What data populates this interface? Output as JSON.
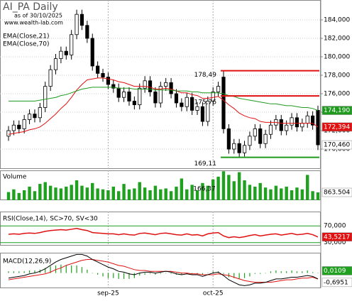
{
  "chart_data": [
    {
      "type": "candlestick",
      "title": "AI_PA Daily",
      "subtitle": "as of 30/10/2025",
      "source": "www.wealth-lab.com",
      "ylim": [
        167.85,
        186.15
      ],
      "yticks": [
        {
          "value": 170,
          "label": "170,000"
        },
        {
          "value": 172,
          "label": "172,000"
        },
        {
          "value": 174,
          "label": "174,000"
        },
        {
          "value": 176,
          "label": "176,000"
        },
        {
          "value": 178,
          "label": "178,000"
        },
        {
          "value": 180,
          "label": "180,000"
        },
        {
          "value": 182,
          "label": "182,000"
        },
        {
          "value": 184,
          "label": "184,000"
        }
      ],
      "grid": true,
      "ohlc": {
        "open": [
          171.4,
          172.0,
          172.6,
          172.2,
          173.2,
          173.8,
          173.4,
          174.5,
          176.8,
          178.6,
          179.8,
          180.6,
          180.2,
          182.4,
          184.6,
          183.4,
          182.0,
          179.0,
          178.2,
          177.8,
          177.0,
          176.6,
          175.6,
          176.2,
          175.2,
          174.8,
          176.6,
          177.4,
          176.2,
          175.0,
          176.8,
          177.2,
          176.0,
          175.0,
          174.6,
          175.6,
          174.2,
          174.6,
          173.0,
          175.2,
          176.2,
          177.8,
          172.2,
          170.0,
          170.6,
          169.6,
          170.4,
          171.4,
          172.2,
          170.6,
          171.6,
          172.6,
          173.2,
          172.0,
          172.6,
          173.4,
          172.4,
          172.8,
          173.6,
          174.2
        ],
        "high": [
          172.5,
          173.1,
          173.1,
          173.7,
          174.3,
          174.3,
          175.0,
          177.3,
          179.1,
          180.3,
          181.1,
          181.1,
          182.9,
          185.1,
          185.1,
          183.9,
          182.5,
          179.5,
          178.7,
          178.3,
          177.5,
          177.1,
          176.7,
          176.7,
          175.7,
          177.1,
          177.9,
          177.9,
          176.7,
          177.3,
          177.7,
          177.7,
          176.5,
          175.5,
          176.1,
          176.1,
          175.1,
          175.1,
          175.7,
          176.7,
          177.3,
          178.49,
          172.7,
          171.1,
          171.1,
          170.9,
          171.9,
          172.7,
          172.7,
          172.1,
          173.1,
          173.7,
          173.7,
          173.1,
          173.9,
          173.9,
          173.3,
          174.1,
          174.1,
          174.7
        ],
        "low": [
          170.9,
          171.5,
          171.7,
          171.7,
          172.7,
          172.9,
          172.9,
          174.0,
          176.3,
          178.1,
          179.3,
          179.7,
          179.7,
          181.9,
          182.9,
          181.5,
          178.5,
          177.7,
          177.3,
          176.5,
          176.1,
          175.1,
          175.1,
          174.7,
          174.3,
          174.3,
          176.1,
          175.7,
          174.5,
          174.5,
          176.3,
          175.5,
          174.5,
          174.1,
          174.1,
          173.7,
          173.7,
          172.5,
          172.5,
          174.7,
          175.7,
          171.7,
          169.5,
          169.5,
          169.11,
          169.2,
          169.9,
          170.9,
          170.1,
          170.1,
          171.1,
          172.1,
          171.5,
          171.5,
          172.1,
          171.9,
          171.9,
          172.3,
          172.1,
          169.9
        ],
        "close": [
          172.0,
          172.6,
          172.2,
          173.2,
          173.8,
          173.4,
          174.5,
          176.8,
          178.6,
          179.8,
          180.6,
          180.2,
          182.4,
          184.6,
          183.4,
          182.0,
          179.0,
          178.2,
          177.8,
          177.0,
          176.6,
          175.6,
          176.2,
          175.2,
          174.8,
          176.6,
          177.4,
          176.2,
          175.0,
          176.8,
          177.2,
          176.0,
          175.0,
          174.6,
          175.6,
          174.2,
          174.6,
          173.0,
          175.2,
          176.2,
          176.8,
          172.2,
          170.0,
          170.6,
          169.6,
          170.4,
          171.4,
          172.2,
          170.6,
          171.6,
          172.6,
          173.2,
          172.0,
          172.6,
          173.4,
          172.4,
          172.8,
          173.6,
          172.6,
          170.46
        ],
        "last_label": "170,460"
      },
      "series": [
        {
          "name": "EMA(Close,21)",
          "color": "#e01010",
          "last_label": "172,394",
          "values": [
            171.6,
            171.7,
            171.8,
            171.9,
            172.1,
            172.2,
            172.4,
            172.8,
            173.3,
            173.8,
            174.4,
            174.9,
            175.6,
            176.4,
            177.0,
            177.5,
            177.6,
            177.7,
            177.7,
            177.6,
            177.5,
            177.3,
            177.2,
            177.0,
            176.8,
            176.8,
            176.8,
            176.7,
            176.5,
            176.5,
            176.6,
            176.5,
            176.3,
            176.1,
            176.1,
            175.9,
            175.8,
            175.5,
            175.5,
            175.6,
            175.7,
            175.3,
            174.8,
            174.4,
            173.9,
            173.6,
            173.4,
            173.3,
            173.0,
            172.9,
            172.9,
            172.9,
            172.8,
            172.8,
            172.8,
            172.8,
            172.8,
            172.8,
            172.8,
            172.394
          ]
        },
        {
          "name": "EMA(Close,70)",
          "color": "#1f9a1f",
          "last_label": "174,190",
          "values": [
            175.2,
            175.2,
            175.2,
            175.2,
            175.2,
            175.2,
            175.3,
            175.4,
            175.5,
            175.6,
            175.8,
            175.9,
            176.1,
            176.3,
            176.5,
            176.6,
            176.7,
            176.7,
            176.7,
            176.7,
            176.7,
            176.6,
            176.6,
            176.6,
            176.5,
            176.5,
            176.5,
            176.5,
            176.4,
            176.4,
            176.4,
            176.4,
            176.3,
            176.3,
            176.3,
            176.2,
            176.2,
            176.1,
            176.1,
            176.1,
            176.1,
            176.0,
            175.8,
            175.7,
            175.5,
            175.4,
            175.3,
            175.2,
            175.1,
            175.0,
            174.9,
            174.9,
            174.8,
            174.7,
            174.7,
            174.6,
            174.5,
            174.5,
            174.4,
            174.19
          ]
        }
      ],
      "levels": [
        {
          "value": 178.49,
          "label": "178,49",
          "color": "#e01010"
        },
        {
          "value": 175.76,
          "label": "175,76",
          "color": "#e01010"
        },
        {
          "value": 169.11,
          "label": "169,11",
          "color": "#1f9a1f"
        }
      ]
    },
    {
      "type": "bar",
      "title": "Volume",
      "color": "#1fa01f",
      "ylim": [
        0,
        3300000
      ],
      "annotation": "166,37",
      "last_label": "863.504",
      "values": [
        900000,
        1200000,
        800000,
        1100000,
        1500000,
        1000000,
        1800000,
        2000000,
        1600000,
        1400000,
        1300000,
        1500000,
        1700000,
        2200000,
        1600000,
        1400000,
        1900000,
        1300000,
        1200000,
        1100000,
        1500000,
        1000000,
        1800000,
        1200000,
        1300000,
        2000000,
        1400000,
        1100000,
        1600000,
        1200000,
        1300000,
        1000000,
        1500000,
        2400000,
        1200000,
        1700000,
        1100000,
        1900000,
        1600000,
        2300000,
        2600000,
        3200000,
        2800000,
        2100000,
        3100000,
        2200000,
        1700000,
        1500000,
        1900000,
        1400000,
        1200000,
        1600000,
        1300000,
        1500000,
        1100000,
        1400000,
        1200000,
        2800000,
        1000000,
        863504
      ]
    },
    {
      "type": "line",
      "title": "RSI(Close,14), SC>70, SV<30",
      "ylim": [
        22.7,
        104.5
      ],
      "yticks": [
        {
          "value": 70,
          "label": "70,000"
        },
        {
          "value": 30,
          "label": "30,000"
        }
      ],
      "level_color": "#1f9a1f",
      "series": [
        {
          "color": "#e01010",
          "last_label": "43,5217",
          "values": [
            50,
            51,
            50,
            52,
            53,
            52,
            54,
            57,
            59,
            60,
            61,
            60,
            62,
            64,
            61,
            59,
            54,
            53,
            52,
            51,
            51,
            49,
            51,
            49,
            48,
            52,
            53,
            51,
            49,
            52,
            53,
            51,
            49,
            48,
            51,
            48,
            49,
            46,
            51,
            53,
            54,
            46,
            42,
            44,
            42,
            44,
            47,
            49,
            46,
            48,
            50,
            51,
            48,
            50,
            52,
            49,
            50,
            52,
            49,
            43.5217
          ]
        }
      ]
    },
    {
      "type": "macd",
      "title": "MACD(12,26,9)",
      "ylim": [
        -1.8,
        2.4
      ],
      "macd": {
        "color": "#000000",
        "last_label": "-0,6951",
        "values": [
          -0.6,
          -0.5,
          -0.4,
          -0.3,
          -0.1,
          0.0,
          0.2,
          0.5,
          0.9,
          1.3,
          1.6,
          1.8,
          2.0,
          2.2,
          2.2,
          2.0,
          1.6,
          1.3,
          1.0,
          0.7,
          0.5,
          0.2,
          0.1,
          -0.1,
          -0.2,
          0.0,
          0.1,
          0.1,
          0.0,
          0.1,
          0.2,
          0.1,
          -0.1,
          -0.2,
          -0.1,
          -0.2,
          -0.2,
          -0.4,
          -0.2,
          0.0,
          0.1,
          -0.3,
          -0.8,
          -1.1,
          -1.4,
          -1.5,
          -1.4,
          -1.2,
          -1.2,
          -1.1,
          -0.9,
          -0.7,
          -0.7,
          -0.6,
          -0.5,
          -0.5,
          -0.4,
          -0.3,
          -0.4,
          -0.6951
        ]
      },
      "signal": {
        "color": "#e01010",
        "values": [
          -0.8,
          -0.7,
          -0.6,
          -0.5,
          -0.4,
          -0.3,
          -0.2,
          -0.1,
          0.1,
          0.4,
          0.6,
          0.9,
          1.1,
          1.3,
          1.5,
          1.6,
          1.6,
          1.5,
          1.4,
          1.3,
          1.1,
          0.9,
          0.8,
          0.6,
          0.4,
          0.3,
          0.3,
          0.2,
          0.2,
          0.2,
          0.2,
          0.2,
          0.1,
          0.0,
          0.0,
          -0.1,
          -0.1,
          -0.2,
          -0.2,
          -0.2,
          -0.1,
          -0.2,
          -0.3,
          -0.5,
          -0.7,
          -0.9,
          -1.0,
          -1.1,
          -1.1,
          -1.1,
          -1.1,
          -1.0,
          -0.9,
          -0.8,
          -0.8,
          -0.7,
          -0.6,
          -0.6,
          -0.5,
          -0.706
        ]
      },
      "histogram": {
        "color": "#1fa01f",
        "last_label": "0,0109",
        "values": [
          0.2,
          0.2,
          0.2,
          0.2,
          0.3,
          0.3,
          0.4,
          0.6,
          0.8,
          0.9,
          1.0,
          0.9,
          0.9,
          0.9,
          0.7,
          0.4,
          0.0,
          -0.2,
          -0.4,
          -0.6,
          -0.6,
          -0.7,
          -0.7,
          -0.7,
          -0.6,
          -0.3,
          -0.2,
          -0.1,
          -0.2,
          -0.1,
          0.0,
          -0.1,
          -0.2,
          -0.2,
          -0.1,
          -0.1,
          -0.1,
          -0.2,
          0.0,
          0.2,
          0.2,
          -0.1,
          -0.5,
          -0.6,
          -0.7,
          -0.6,
          -0.4,
          -0.1,
          -0.1,
          0.0,
          0.2,
          0.3,
          0.2,
          0.2,
          0.3,
          0.2,
          0.2,
          0.3,
          0.1,
          0.0109
        ]
      },
      "x_labels": [
        {
          "index": 19,
          "label": "sep-25"
        },
        {
          "index": 39,
          "label": "oct-25"
        }
      ]
    }
  ]
}
